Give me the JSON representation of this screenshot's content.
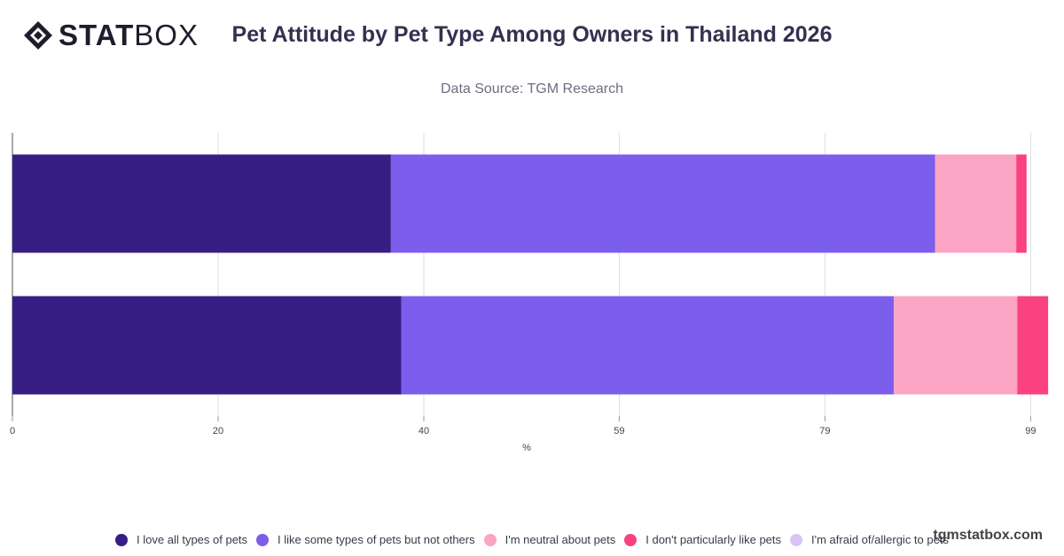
{
  "brand": {
    "name_bold": "STAT",
    "name_light": "BOX",
    "watermark": "tgmstatbox.com"
  },
  "chart_data": {
    "type": "bar",
    "orientation": "horizontal",
    "stacked": true,
    "title": "Pet Attitude by Pet Type Among Owners in Thailand 2026",
    "subtitle": "Data Source: TGM Research",
    "xlabel": "%",
    "ylabel": "",
    "xlim": [
      0,
      100
    ],
    "x_ticks": [
      "0",
      "20",
      "40",
      "59",
      "79",
      "99"
    ],
    "categories": [
      "",
      ""
    ],
    "grid": true,
    "legend_position": "bottom",
    "series": [
      {
        "name": "I love all types of pets",
        "color": "#371e85",
        "values": [
          36.8,
          37.8
        ]
      },
      {
        "name": "I like some types of pets but not others",
        "color": "#7c5eed",
        "values": [
          52.9,
          47.9
        ]
      },
      {
        "name": "I'm neutral about pets",
        "color": "#fca4c4",
        "values": [
          7.9,
          12.0
        ]
      },
      {
        "name": "I don't particularly like pets",
        "color": "#f9427f",
        "values": [
          1.0,
          3.0
        ]
      },
      {
        "name": "I'm afraid of/allergic to pets",
        "color": "#d8c4f5",
        "values": [
          0,
          0
        ]
      }
    ]
  }
}
